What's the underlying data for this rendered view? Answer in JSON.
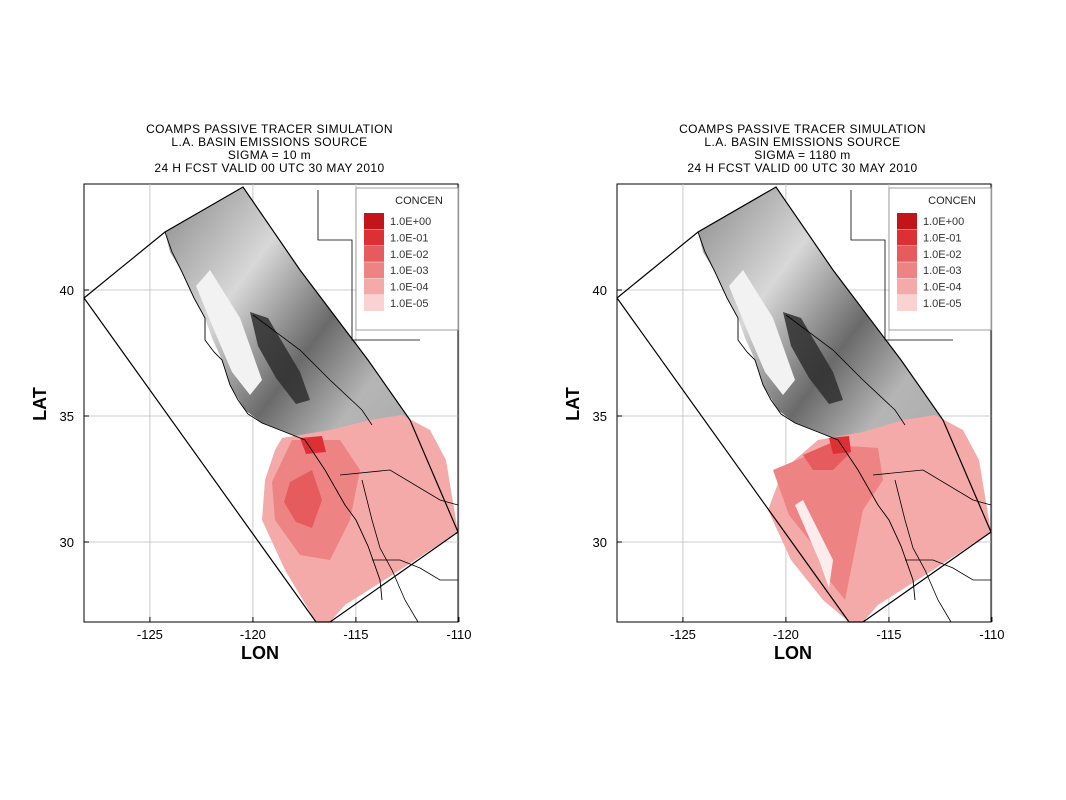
{
  "colors": {
    "tracer": "#e8565a",
    "tracer_light": "#f4aaa8",
    "grid": "#000000"
  },
  "axis_labels": {
    "x": "LON",
    "y": "LAT"
  },
  "lon_ticks": [
    "-125",
    "-120",
    "-115",
    "-110"
  ],
  "lat_ticks": [
    "40",
    "35",
    "30"
  ],
  "legend": {
    "title": "CONCEN",
    "levels": [
      "1.0E+00",
      "1.0E-01",
      "1.0E-02",
      "1.0E-03",
      "1.0E-04",
      "1.0E-05"
    ],
    "colors": [
      "#c3141b",
      "#dc3034",
      "#e65b5d",
      "#ee8384",
      "#f4aaa8",
      "#f9d2d1"
    ]
  },
  "panels": [
    {
      "title1": "COAMPS PASSIVE TRACER SIMULATION",
      "title2": "L.A. BASIN EMISSIONS SOURCE",
      "title3": "SIGMA = 10 m",
      "title4": "24 H FCST VALID 00 UTC 30 MAY 2010"
    },
    {
      "title1": "COAMPS PASSIVE TRACER SIMULATION",
      "title2": "L.A. BASIN EMISSIONS SOURCE",
      "title3": "SIGMA = 1180 m",
      "title4": "24 H FCST VALID 00 UTC 30 MAY 2010"
    }
  ]
}
